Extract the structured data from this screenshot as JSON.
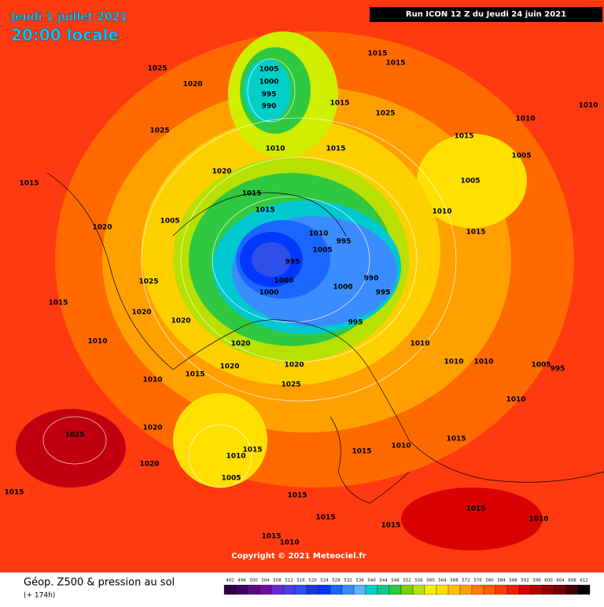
{
  "header": {
    "date": "Jeudi 1 juillet 2021",
    "time": "20:00 locale",
    "run": "Run ICON 12 Z du Jeudi 24 juin 2021"
  },
  "copyright": "Copyright © 2021 Meteociel.fr",
  "footer": {
    "title": "Géop. Z500 & pression au sol",
    "lead": "(+ 174h)"
  },
  "pressure_labels": [
    "1025",
    "1020",
    "1005",
    "1000",
    "995",
    "990",
    "1015",
    "1015",
    "1015",
    "1025",
    "1025",
    "1010",
    "1015",
    "1015",
    "1005",
    "1010",
    "1010",
    "1020",
    "1015",
    "1015",
    "1005",
    "1010",
    "1015",
    "1005",
    "1020",
    "1010",
    "995",
    "1005",
    "995",
    "1000",
    "1000",
    "1000",
    "990",
    "995",
    "995",
    "1025",
    "1015",
    "1020",
    "1020",
    "1010",
    "1020",
    "1010",
    "1010",
    "1020",
    "1025",
    "1010",
    "1015",
    "1020",
    "1025",
    "1020",
    "1015",
    "1010",
    "1005",
    "1020",
    "1015",
    "1015",
    "1010",
    "1015",
    "1005",
    "995",
    "1010",
    "1015",
    "1015",
    "1015",
    "1010",
    "1015",
    "1015",
    "1010",
    "1010",
    "1015"
  ],
  "scale": {
    "values": [
      492,
      496,
      500,
      504,
      508,
      512,
      516,
      520,
      524,
      528,
      532,
      536,
      540,
      544,
      548,
      552,
      556,
      560,
      564,
      568,
      572,
      576,
      580,
      584,
      588,
      592,
      596,
      600,
      604,
      608,
      612
    ],
    "colors": [
      "#2a0040",
      "#400060",
      "#5a0a80",
      "#700aa0",
      "#6a2ad0",
      "#4a3ee0",
      "#2f4fe8",
      "#1a3ad0",
      "#0038ff",
      "#1a66ff",
      "#3b8cff",
      "#5ab4ff",
      "#00d0c8",
      "#10c890",
      "#30c840",
      "#7ad000",
      "#b8e000",
      "#f0f000",
      "#ffe000",
      "#ffc000",
      "#ffa000",
      "#ff8000",
      "#ff6000",
      "#ff4000",
      "#ee2000",
      "#d00000",
      "#b00000",
      "#900000",
      "#700000",
      "#400000",
      "#000000"
    ]
  }
}
